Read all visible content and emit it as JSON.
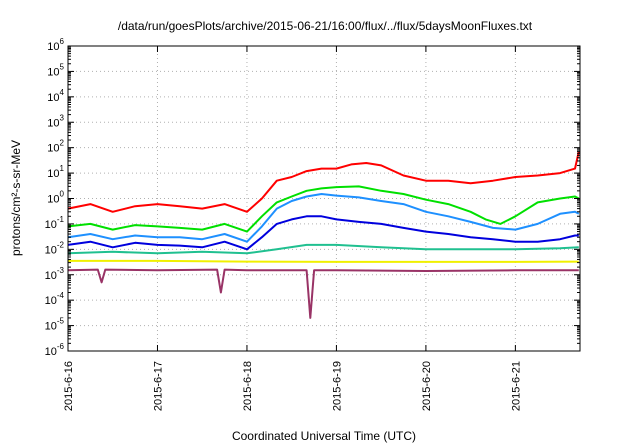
{
  "chart_data": {
    "type": "line",
    "title": "/data/run/goesPlots/archive/2015-06-21/16:00/flux/../flux/5daysMoonFluxes.txt",
    "xlabel": "Coordinated Universal Time (UTC)",
    "ylabel": "protons/cm²-s-sr-MeV",
    "x_scale": "time",
    "xlim": [
      "2015-06-16T00:00",
      "2015-06-21T17:20"
    ],
    "x_ticks": [
      "2015-6-16",
      "2015-6-17",
      "2015-6-18",
      "2015-6-19",
      "2015-6-20",
      "2015-6-21"
    ],
    "y_scale": "log",
    "ylim": [
      1e-06,
      1000000.0
    ],
    "y_ticks": [
      {
        "base": "10",
        "exp": "-6"
      },
      {
        "base": "10",
        "exp": "-5"
      },
      {
        "base": "10",
        "exp": "-4"
      },
      {
        "base": "10",
        "exp": "-3"
      },
      {
        "base": "10",
        "exp": "-2"
      },
      {
        "base": "10",
        "exp": "-1"
      },
      {
        "base": "10",
        "exp": "0"
      },
      {
        "base": "10",
        "exp": "1"
      },
      {
        "base": "10",
        "exp": "2"
      },
      {
        "base": "10",
        "exp": "3"
      },
      {
        "base": "10",
        "exp": "4"
      },
      {
        "base": "10",
        "exp": "5"
      },
      {
        "base": "10",
        "exp": "6"
      }
    ],
    "grid": true,
    "legend": "none",
    "series": [
      {
        "color": "#ff0000",
        "x": [
          "2015-06-16T00:00",
          "2015-06-16T06:00",
          "2015-06-16T12:00",
          "2015-06-16T18:00",
          "2015-06-17T00:00",
          "2015-06-17T06:00",
          "2015-06-17T12:00",
          "2015-06-17T18:00",
          "2015-06-18T00:00",
          "2015-06-18T04:00",
          "2015-06-18T08:00",
          "2015-06-18T12:00",
          "2015-06-18T16:00",
          "2015-06-18T20:00",
          "2015-06-19T00:00",
          "2015-06-19T04:00",
          "2015-06-19T08:00",
          "2015-06-19T12:00",
          "2015-06-19T18:00",
          "2015-06-20T00:00",
          "2015-06-20T06:00",
          "2015-06-20T12:00",
          "2015-06-20T18:00",
          "2015-06-21T00:00",
          "2015-06-21T06:00",
          "2015-06-21T12:00",
          "2015-06-21T16:00",
          "2015-06-21T17:00"
        ],
        "y": [
          0.4,
          0.6,
          0.3,
          0.5,
          0.6,
          0.5,
          0.4,
          0.6,
          0.3,
          1,
          5,
          7,
          12,
          15,
          15,
          22,
          25,
          20,
          8,
          5,
          5,
          4,
          5,
          7,
          8,
          10,
          15,
          70
        ]
      },
      {
        "color": "#00e000",
        "x": [
          "2015-06-16T00:00",
          "2015-06-16T06:00",
          "2015-06-16T12:00",
          "2015-06-16T18:00",
          "2015-06-17T00:00",
          "2015-06-17T06:00",
          "2015-06-17T12:00",
          "2015-06-17T18:00",
          "2015-06-18T00:00",
          "2015-06-18T04:00",
          "2015-06-18T08:00",
          "2015-06-18T12:00",
          "2015-06-18T16:00",
          "2015-06-18T20:00",
          "2015-06-19T00:00",
          "2015-06-19T06:00",
          "2015-06-19T12:00",
          "2015-06-19T18:00",
          "2015-06-20T00:00",
          "2015-06-20T06:00",
          "2015-06-20T12:00",
          "2015-06-20T16:00",
          "2015-06-20T20:00",
          "2015-06-21T00:00",
          "2015-06-21T06:00",
          "2015-06-21T12:00",
          "2015-06-21T16:00",
          "2015-06-21T17:00"
        ],
        "y": [
          0.08,
          0.1,
          0.06,
          0.09,
          0.08,
          0.07,
          0.06,
          0.1,
          0.05,
          0.2,
          0.7,
          1.2,
          2,
          2.5,
          2.8,
          3,
          2,
          1.5,
          0.9,
          0.6,
          0.3,
          0.15,
          0.1,
          0.2,
          0.7,
          1,
          1.2,
          1
        ]
      },
      {
        "color": "#1e90ff",
        "x": [
          "2015-06-16T00:00",
          "2015-06-16T06:00",
          "2015-06-16T12:00",
          "2015-06-16T18:00",
          "2015-06-17T00:00",
          "2015-06-17T06:00",
          "2015-06-17T12:00",
          "2015-06-17T18:00",
          "2015-06-18T00:00",
          "2015-06-18T04:00",
          "2015-06-18T08:00",
          "2015-06-18T12:00",
          "2015-06-18T16:00",
          "2015-06-18T20:00",
          "2015-06-19T00:00",
          "2015-06-19T06:00",
          "2015-06-19T12:00",
          "2015-06-19T18:00",
          "2015-06-20T00:00",
          "2015-06-20T06:00",
          "2015-06-20T12:00",
          "2015-06-20T18:00",
          "2015-06-21T00:00",
          "2015-06-21T06:00",
          "2015-06-21T12:00",
          "2015-06-21T16:00",
          "2015-06-21T17:00"
        ],
        "y": [
          0.03,
          0.04,
          0.025,
          0.035,
          0.03,
          0.03,
          0.025,
          0.04,
          0.02,
          0.08,
          0.4,
          0.8,
          1.2,
          1.5,
          1.3,
          1.1,
          0.8,
          0.6,
          0.3,
          0.2,
          0.12,
          0.07,
          0.06,
          0.1,
          0.25,
          0.3,
          0.25
        ]
      },
      {
        "color": "#0000dd",
        "x": [
          "2015-06-16T00:00",
          "2015-06-16T06:00",
          "2015-06-16T12:00",
          "2015-06-16T18:00",
          "2015-06-17T00:00",
          "2015-06-17T06:00",
          "2015-06-17T12:00",
          "2015-06-17T18:00",
          "2015-06-18T00:00",
          "2015-06-18T04:00",
          "2015-06-18T08:00",
          "2015-06-18T12:00",
          "2015-06-18T16:00",
          "2015-06-18T20:00",
          "2015-06-19T00:00",
          "2015-06-19T06:00",
          "2015-06-19T12:00",
          "2015-06-19T18:00",
          "2015-06-20T00:00",
          "2015-06-20T06:00",
          "2015-06-20T12:00",
          "2015-06-20T18:00",
          "2015-06-21T00:00",
          "2015-06-21T06:00",
          "2015-06-21T12:00",
          "2015-06-21T16:00",
          "2015-06-21T17:00"
        ],
        "y": [
          0.015,
          0.02,
          0.012,
          0.018,
          0.015,
          0.014,
          0.012,
          0.02,
          0.01,
          0.03,
          0.1,
          0.15,
          0.2,
          0.2,
          0.15,
          0.12,
          0.1,
          0.07,
          0.05,
          0.04,
          0.03,
          0.025,
          0.02,
          0.02,
          0.025,
          0.035,
          0.035
        ]
      },
      {
        "color": "#20c090",
        "x": [
          "2015-06-16T00:00",
          "2015-06-16T12:00",
          "2015-06-17T00:00",
          "2015-06-17T12:00",
          "2015-06-18T00:00",
          "2015-06-18T08:00",
          "2015-06-18T16:00",
          "2015-06-19T00:00",
          "2015-06-19T12:00",
          "2015-06-20T00:00",
          "2015-06-20T12:00",
          "2015-06-21T00:00",
          "2015-06-21T12:00",
          "2015-06-21T17:00"
        ],
        "y": [
          0.007,
          0.008,
          0.007,
          0.008,
          0.007,
          0.01,
          0.015,
          0.015,
          0.012,
          0.01,
          0.01,
          0.01,
          0.011,
          0.012
        ]
      },
      {
        "color": "#f0f000",
        "x": [
          "2015-06-16T00:00",
          "2015-06-17T00:00",
          "2015-06-18T00:00",
          "2015-06-19T00:00",
          "2015-06-20T00:00",
          "2015-06-21T00:00",
          "2015-06-21T17:00"
        ],
        "y": [
          0.0035,
          0.0035,
          0.0033,
          0.0032,
          0.0032,
          0.0032,
          0.0033
        ]
      },
      {
        "color": "#993366",
        "x": [
          "2015-06-16T00:00",
          "2015-06-16T08:00",
          "2015-06-16T09:00",
          "2015-06-16T10:00",
          "2015-06-17T00:00",
          "2015-06-17T16:00",
          "2015-06-17T17:00",
          "2015-06-17T18:00",
          "2015-06-18T00:00",
          "2015-06-18T16:00",
          "2015-06-18T17:00",
          "2015-06-18T18:00",
          "2015-06-19T00:00",
          "2015-06-20T00:00",
          "2015-06-21T00:00",
          "2015-06-21T17:00"
        ],
        "y": [
          0.0015,
          0.0016,
          0.0005,
          0.0016,
          0.0015,
          0.0016,
          0.0002,
          0.0016,
          0.0015,
          0.0015,
          2e-05,
          0.0015,
          0.0015,
          0.0014,
          0.0015,
          0.0015
        ]
      }
    ]
  }
}
